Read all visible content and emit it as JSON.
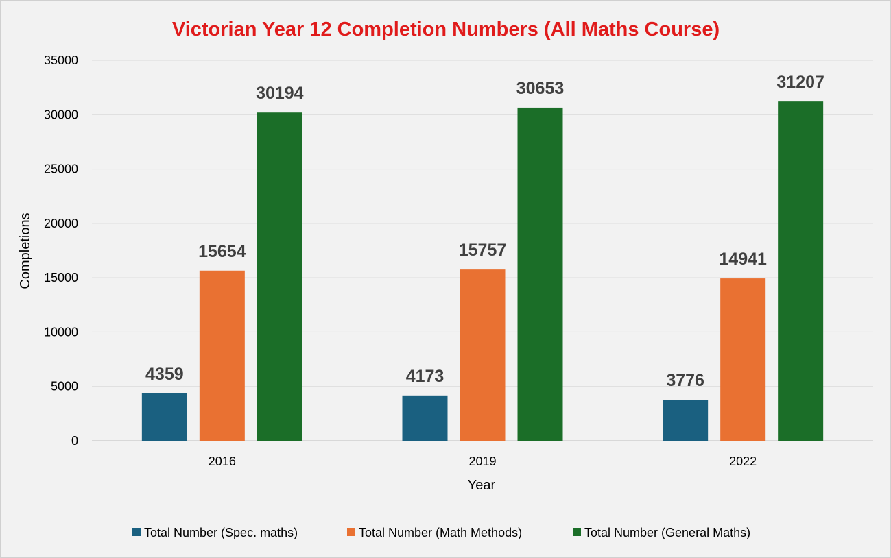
{
  "chart_data": {
    "type": "bar",
    "title": "Victorian Year 12 Completion Numbers (All Maths Course)",
    "xlabel": "Year",
    "ylabel": "Completions",
    "categories": [
      "2016",
      "2019",
      "2022"
    ],
    "ylim": [
      0,
      35000
    ],
    "yticks": [
      0,
      5000,
      10000,
      15000,
      20000,
      25000,
      30000,
      35000
    ],
    "grid": true,
    "legend_position": "bottom",
    "series": [
      {
        "name": "Total Number (Spec. maths)",
        "color": "#1a6080",
        "values": [
          4359,
          4173,
          3776
        ]
      },
      {
        "name": "Total Number (Math Methods)",
        "color": "#e97132",
        "values": [
          15654,
          15757,
          14941
        ]
      },
      {
        "name": "Total Number (General Maths)",
        "color": "#1b6e28",
        "values": [
          30194,
          30653,
          31207
        ]
      }
    ]
  }
}
